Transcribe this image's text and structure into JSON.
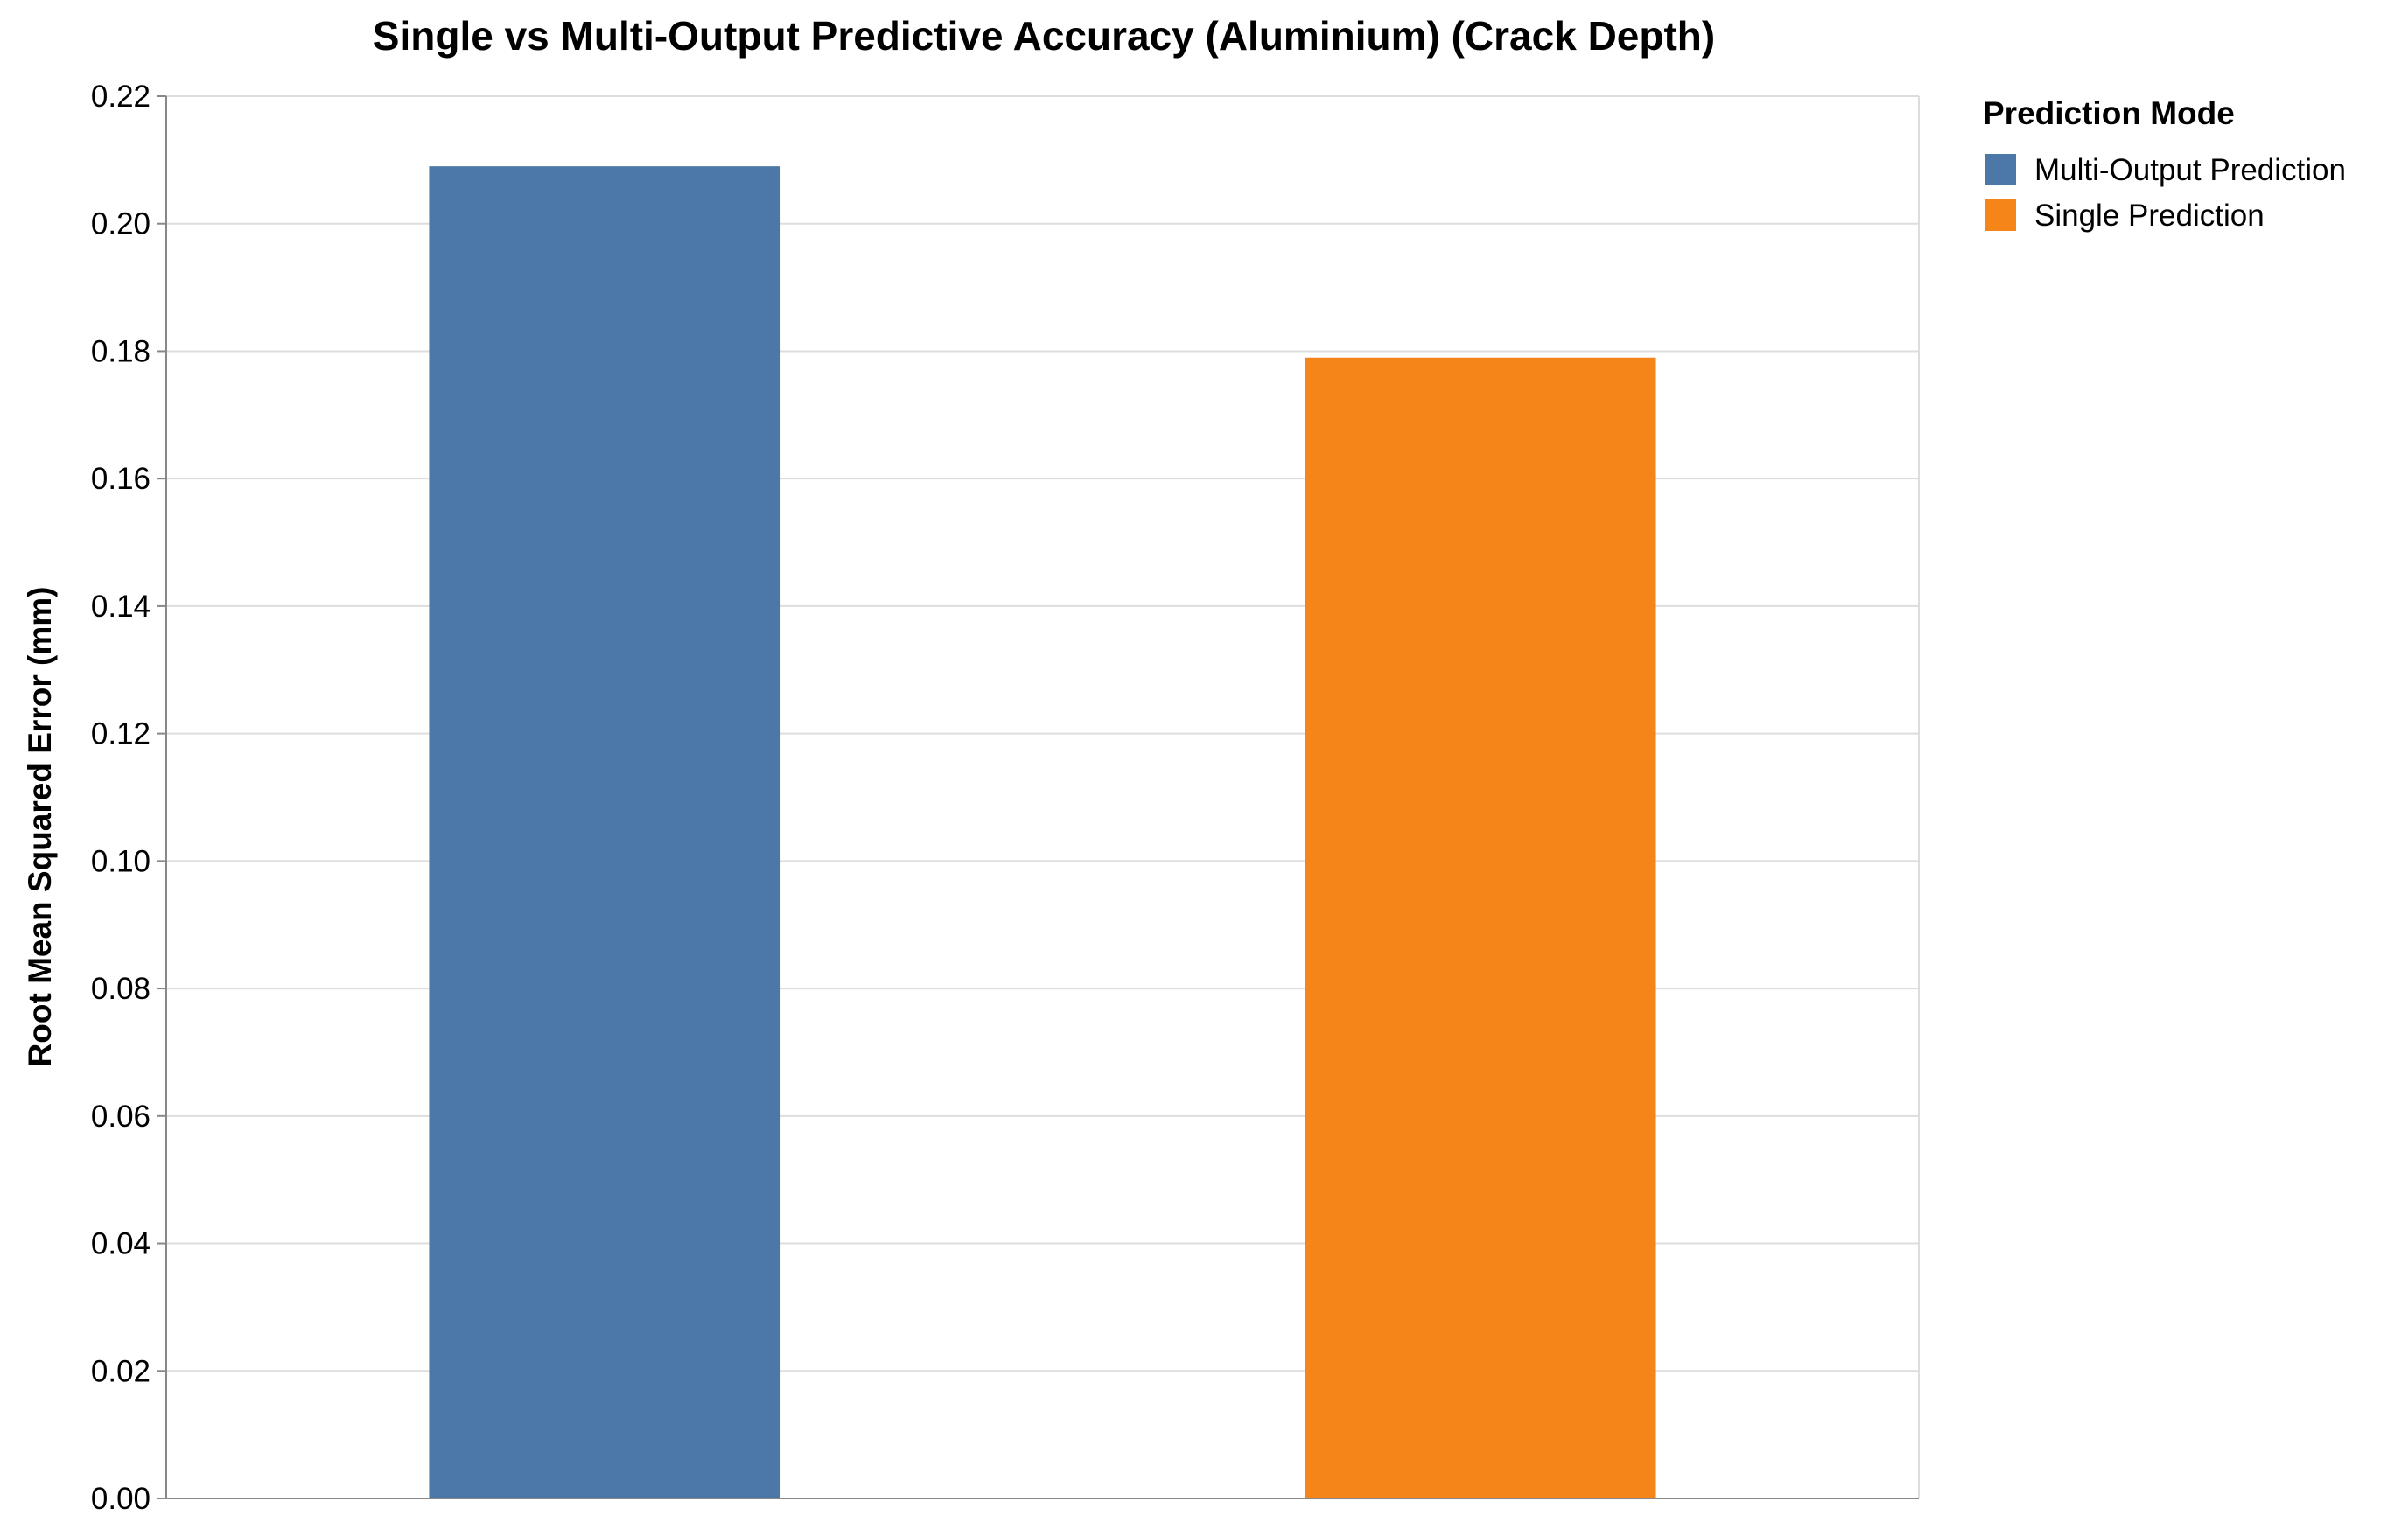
{
  "chart_data": {
    "type": "bar",
    "title": "Single vs Multi-Output Predictive Accuracy (Aluminium) (Crack Depth)",
    "xlabel": "",
    "ylabel": "Root Mean Squared Error (mm)",
    "ylim": [
      0,
      0.22
    ],
    "yticks": [
      "0.00",
      "0.02",
      "0.04",
      "0.06",
      "0.08",
      "0.10",
      "0.12",
      "0.14",
      "0.16",
      "0.18",
      "0.20",
      "0.22"
    ],
    "grid": true,
    "legend_position": "right",
    "legend_title": "Prediction Mode",
    "categories": [
      "Multi-Output Prediction",
      "Single Prediction"
    ],
    "values": [
      0.209,
      0.179
    ],
    "colors": [
      "#4c78a8",
      "#f58518"
    ]
  },
  "colors": {
    "grid": "#dddddd",
    "axis": "#888888"
  }
}
